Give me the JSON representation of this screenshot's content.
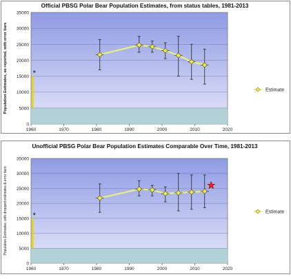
{
  "chart_data": [
    {
      "type": "line",
      "title": "Official PBSG Polar Bear Population Estimates, from status tables, 1981-2013",
      "ylabel": "Population Estimates, as reported, with error bars",
      "xlabel": "",
      "xlim": [
        1960,
        2020
      ],
      "ylim": [
        0,
        35000
      ],
      "x_ticks": [
        1960,
        1970,
        1980,
        1990,
        2000,
        2010,
        2020
      ],
      "y_ticks": [
        0,
        5000,
        10000,
        15000,
        20000,
        25000,
        30000,
        35000
      ],
      "legend": {
        "placement": "right",
        "entries": [
          "Estimate"
        ]
      },
      "series": [
        {
          "name": "Estimate",
          "x": [
            1981,
            1993,
            1997,
            2001,
            2005,
            2009,
            2013
          ],
          "y": [
            21750,
            24750,
            24250,
            23000,
            21500,
            19500,
            18500
          ],
          "y_low": [
            17000,
            22500,
            22500,
            20500,
            15000,
            14000,
            12500
          ],
          "y_high": [
            26500,
            27500,
            26000,
            25500,
            27500,
            25000,
            23500
          ]
        }
      ],
      "range_bar": {
        "x": 1960,
        "y_low": 5000,
        "y_high": 15000,
        "color": "#e6d800"
      },
      "annotations": [
        {
          "text": "*",
          "x": 1961,
          "y": 16300
        }
      ],
      "colors": {
        "plot_top": "#8f9be4",
        "plot_bottom": "#dfe2f7",
        "band": "#a9cfd1",
        "line": "#e8f078",
        "marker": "#f3ee3a"
      }
    },
    {
      "type": "line",
      "title": "Unofficial PBSG Polar Bear Population Estimates Comparable Over Time, 1981-2013",
      "ylabel": "Population Estimates, with dropped estimates & error bars",
      "xlabel": "",
      "xlim": [
        1960,
        2020
      ],
      "ylim": [
        0,
        35000
      ],
      "x_ticks": [
        1960,
        1970,
        1980,
        1990,
        2000,
        2010,
        2020
      ],
      "y_ticks": [
        0,
        5000,
        10000,
        15000,
        20000,
        25000,
        30000,
        35000
      ],
      "legend": {
        "placement": "right",
        "entries": [
          "Estimate"
        ]
      },
      "series": [
        {
          "name": "Estimate",
          "x": [
            1981,
            1993,
            1997,
            2001,
            2005,
            2009,
            2013
          ],
          "y": [
            21750,
            24750,
            24500,
            23250,
            23500,
            23750,
            24000
          ],
          "y_low": [
            17000,
            22500,
            22500,
            20500,
            17500,
            18000,
            18500
          ],
          "y_high": [
            26500,
            27500,
            26000,
            25500,
            30000,
            29500,
            29500
          ]
        }
      ],
      "range_bar": {
        "x": 1960,
        "y_low": 5000,
        "y_high": 15000,
        "color": "#e6d800"
      },
      "highlight_point": {
        "x": 2015,
        "y": 26000,
        "shape": "star",
        "color": "#e8262a"
      },
      "annotations": [
        {
          "text": "*",
          "x": 1961,
          "y": 16300
        }
      ],
      "colors": {
        "plot_top": "#8f9be4",
        "plot_bottom": "#dfe2f7",
        "band": "#a9cfd1",
        "line": "#e8f078",
        "marker": "#f3ee3a"
      }
    }
  ]
}
